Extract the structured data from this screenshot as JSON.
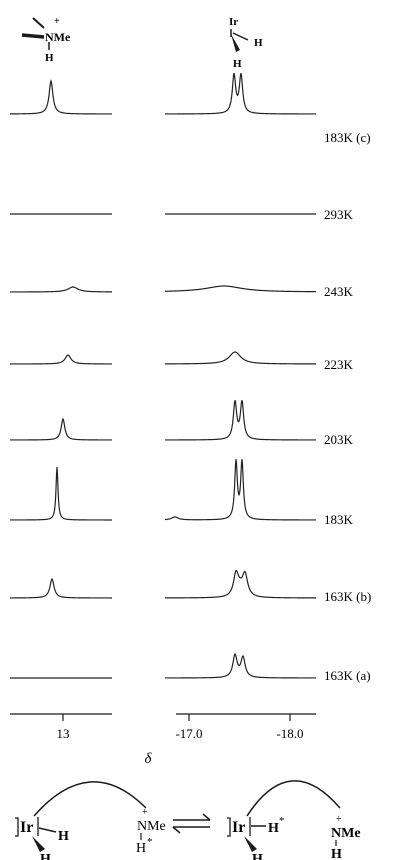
{
  "header": {
    "left_group": "NMe",
    "left_plus": "+",
    "left_h": "H",
    "right_metal": "Ir",
    "right_h1": "H",
    "right_h2": "H"
  },
  "traces": [
    {
      "label": "183K (c)"
    },
    {
      "label": "293K"
    },
    {
      "label": "243K"
    },
    {
      "label": "223K"
    },
    {
      "label": "203K"
    },
    {
      "label": "183K"
    },
    {
      "label": "163K (b)"
    },
    {
      "label": "163K (a)"
    }
  ],
  "axes": {
    "left_tick": "13",
    "right_ticks": [
      "-17.0",
      "-18.0"
    ],
    "delta_label": "δ"
  },
  "scheme": {
    "left": {
      "metal": "Ir",
      "h1": "H",
      "h2": "H",
      "group": "NMe",
      "plus": "+",
      "nh": "H",
      "star": "*"
    },
    "right": {
      "metal": "Ir",
      "h1": "H",
      "star": "*",
      "h2": "H",
      "group": "NMe",
      "plus": "+",
      "nh": "H"
    }
  }
}
